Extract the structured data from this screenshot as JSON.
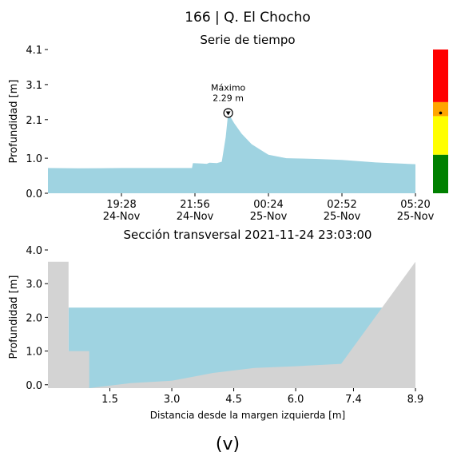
{
  "figure": {
    "title": "166 | Q. El Chocho",
    "caption": "(v)"
  },
  "chart_data": [
    {
      "type": "area",
      "title": "Serie de tiempo",
      "xlabel": "",
      "ylabel": "Profundidad [m]",
      "ylim": [
        0,
        4.1
      ],
      "yticks": [
        {
          "value": 0.0,
          "label": "0.0"
        },
        {
          "value": 1.0,
          "label": "1.0"
        },
        {
          "value": 2.1,
          "label": "2.1"
        },
        {
          "value": 3.1,
          "label": "3.1"
        },
        {
          "value": 4.1,
          "label": "4.1"
        }
      ],
      "xlim": [
        "2021-11-24 17:00",
        "2021-11-25 05:20"
      ],
      "xticks": [
        {
          "value": "2021-11-24 19:28",
          "label": "19:28\n24-Nov"
        },
        {
          "value": "2021-11-24 21:56",
          "label": "21:56\n24-Nov"
        },
        {
          "value": "2021-11-25 00:24",
          "label": "00:24\n25-Nov"
        },
        {
          "value": "2021-11-25 02:52",
          "label": "02:52\n25-Nov"
        },
        {
          "value": "2021-11-25 05:20",
          "label": "05:20\n25-Nov"
        }
      ],
      "fill_color": "#9fd3e1",
      "series": [
        {
          "x": [
            "2021-11-24 17:00",
            "2021-11-24 18:00",
            "2021-11-24 19:28",
            "2021-11-24 20:30",
            "2021-11-24 21:50",
            "2021-11-24 21:52",
            "2021-11-24 22:20",
            "2021-11-24 22:25",
            "2021-11-24 22:40",
            "2021-11-24 22:50",
            "2021-11-24 22:58",
            "2021-11-24 23:03",
            "2021-11-24 23:15",
            "2021-11-24 23:30",
            "2021-11-24 23:50",
            "2021-11-25 00:10",
            "2021-11-25 00:24",
            "2021-11-25 01:00",
            "2021-11-25 02:00",
            "2021-11-25 02:52",
            "2021-11-25 04:00",
            "2021-11-25 05:20"
          ],
          "y": [
            0.72,
            0.71,
            0.72,
            0.72,
            0.72,
            0.86,
            0.84,
            0.87,
            0.86,
            0.9,
            1.6,
            2.29,
            2.0,
            1.7,
            1.4,
            1.22,
            1.1,
            1.0,
            0.98,
            0.95,
            0.88,
            0.83
          ]
        }
      ],
      "annotation": {
        "text": "Máximo\n2.29 m",
        "x": "2021-11-24 23:03",
        "y": 2.29
      },
      "gauge": {
        "levels": [
          {
            "from": 0.0,
            "to": 1.1,
            "color": "#008000"
          },
          {
            "from": 1.1,
            "to": 2.2,
            "color": "#ffff00"
          },
          {
            "from": 2.2,
            "to": 2.6,
            "color": "#ffa500"
          },
          {
            "from": 2.6,
            "to": 4.1,
            "color": "#ff0000"
          }
        ],
        "marker_value": 2.29
      }
    },
    {
      "type": "area",
      "title": "Sección transversal 2021-11-24 23:03:00",
      "xlabel": "Distancia desde la margen izquierda [m]",
      "ylabel": "Profundidad [m]",
      "xlim": [
        0,
        8.9
      ],
      "ylim": [
        -0.1,
        4.0
      ],
      "xticks": [
        {
          "value": 1.5,
          "label": "1.5"
        },
        {
          "value": 3.0,
          "label": "3.0"
        },
        {
          "value": 4.5,
          "label": "4.5"
        },
        {
          "value": 6.0,
          "label": "6.0"
        },
        {
          "value": 7.4,
          "label": "7.4"
        },
        {
          "value": 8.9,
          "label": "8.9"
        }
      ],
      "yticks": [
        {
          "value": 0.0,
          "label": "0.0"
        },
        {
          "value": 1.0,
          "label": "1.0"
        },
        {
          "value": 2.0,
          "label": "2.0"
        },
        {
          "value": 3.0,
          "label": "3.0"
        },
        {
          "value": 4.0,
          "label": "4.0"
        }
      ],
      "water_level": 2.29,
      "water_color": "#9fd3e1",
      "terrain_color": "#d3d3d3",
      "terrain": {
        "x": [
          0,
          0.5,
          0.5,
          1.0,
          1.0,
          2.0,
          3.0,
          4.0,
          5.0,
          6.0,
          7.1,
          8.9
        ],
        "y": [
          3.65,
          3.65,
          1.0,
          1.0,
          -0.1,
          0.05,
          0.12,
          0.35,
          0.5,
          0.55,
          0.62,
          3.65
        ]
      }
    }
  ]
}
